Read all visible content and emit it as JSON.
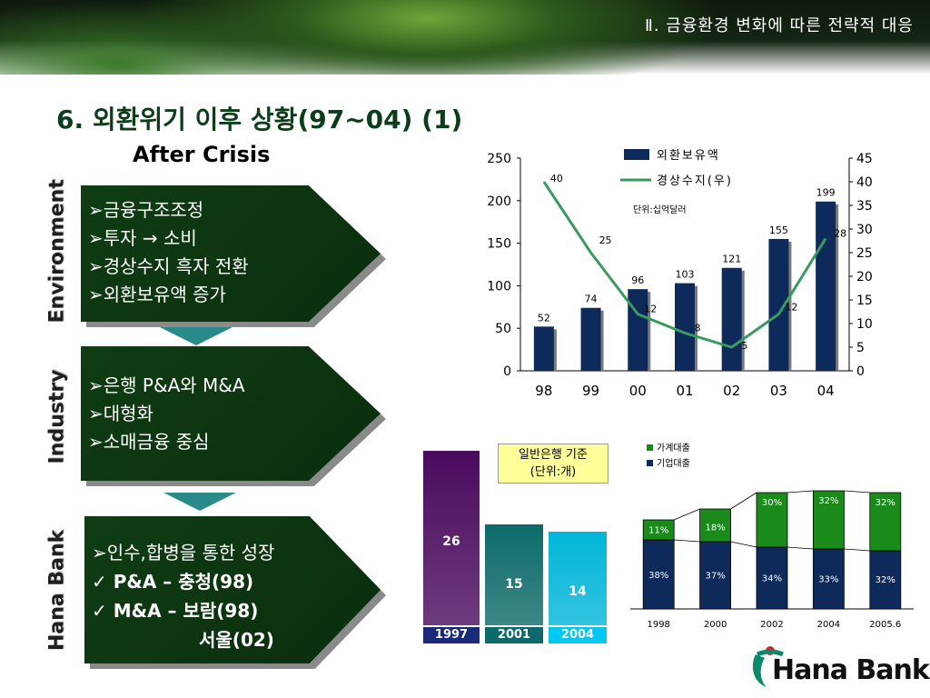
{
  "header": {
    "section": "Ⅱ. 금융환경 변화에 따른 전략적 대응"
  },
  "title": "6. 외환위기 이후 상황(97~04) (1)",
  "subtitle": "After Crisis",
  "side_labels": {
    "environment": "Environment",
    "industry": "Industry",
    "hana": "Hana Bank"
  },
  "boxes": {
    "environment": [
      "➢금융구조조정",
      "➢투자 → 소비",
      "➢경상수지 흑자 전환",
      "➢외환보유액 증가"
    ],
    "industry": [
      "➢은행 P&A와 M&A",
      "➢대형화",
      "➢소매금융 중심"
    ],
    "hana": [
      "➢인수,합병을 통한 성장",
      "✓ P&A – 충청(98)",
      "✓ M&A – 보람(98)",
      "서울(02)"
    ]
  },
  "colors": {
    "bar_navy": "#0d2a5a",
    "line_green": "#3a9a60",
    "box_green": "#0f3d13",
    "arrow_teal": "#2a8a8a"
  },
  "chart_data": [
    {
      "type": "bar",
      "categories": [
        "98",
        "99",
        "00",
        "01",
        "02",
        "03",
        "04"
      ],
      "series": [
        {
          "name": "외환보유액",
          "type": "bar",
          "axis": "left",
          "values": [
            52,
            74,
            96,
            103,
            121,
            155,
            199
          ]
        },
        {
          "name": "경상수지(우)",
          "type": "line",
          "axis": "right",
          "values": [
            40,
            25,
            12,
            8,
            5,
            12,
            28
          ]
        }
      ],
      "unit_note": "단위:십억달러",
      "ylim": [
        0,
        250
      ],
      "yticks": [
        "0",
        "50",
        "100",
        "150",
        "200",
        "250"
      ],
      "y2lim": [
        0,
        45
      ],
      "y2ticks": [
        "0",
        "5",
        "10",
        "15",
        "20",
        "25",
        "30",
        "35",
        "40",
        "45"
      ],
      "legend": [
        "외환보유액",
        "경상수지(우)"
      ]
    },
    {
      "type": "bar",
      "categories": [
        "1997",
        "2001",
        "2004"
      ],
      "values": [
        26,
        15,
        14
      ],
      "title": "일반은행 기준",
      "unit": "(단위:개)",
      "colors": [
        "#4a0a5e",
        "#0d6a6a",
        "#00b5d8"
      ]
    },
    {
      "type": "bar",
      "stacked": true,
      "categories": [
        "1998",
        "2000",
        "2002",
        "2004",
        "2005.6"
      ],
      "series": [
        {
          "name": "기업대출",
          "values": [
            38,
            37,
            34,
            33,
            32
          ],
          "labels": [
            "38%",
            "37%",
            "34%",
            "33%",
            "32%"
          ]
        },
        {
          "name": "가계대출",
          "values": [
            11,
            18,
            30,
            32,
            32
          ],
          "labels": [
            "11%",
            "18%",
            "30%",
            "32%",
            "32%"
          ]
        }
      ],
      "legend": [
        "가계대출",
        "기업대출"
      ]
    }
  ],
  "logo": "Hana Bank"
}
